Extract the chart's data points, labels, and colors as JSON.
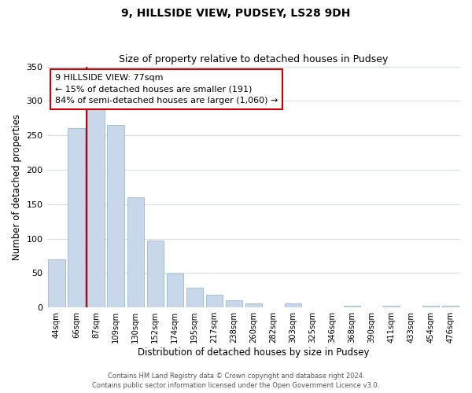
{
  "title": "9, HILLSIDE VIEW, PUDSEY, LS28 9DH",
  "subtitle": "Size of property relative to detached houses in Pudsey",
  "xlabel": "Distribution of detached houses by size in Pudsey",
  "ylabel": "Number of detached properties",
  "bar_labels": [
    "44sqm",
    "66sqm",
    "87sqm",
    "109sqm",
    "130sqm",
    "152sqm",
    "174sqm",
    "195sqm",
    "217sqm",
    "238sqm",
    "260sqm",
    "282sqm",
    "303sqm",
    "325sqm",
    "346sqm",
    "368sqm",
    "390sqm",
    "411sqm",
    "433sqm",
    "454sqm",
    "476sqm"
  ],
  "bar_values": [
    70,
    260,
    292,
    265,
    160,
    97,
    49,
    29,
    19,
    10,
    6,
    0,
    6,
    0,
    0,
    3,
    0,
    2,
    0,
    2,
    2
  ],
  "bar_color": "#c8d8ea",
  "bar_edge_color": "#9ab8cc",
  "vline_color": "#cc0000",
  "vline_pos": 1.5,
  "ylim": [
    0,
    350
  ],
  "yticks": [
    0,
    50,
    100,
    150,
    200,
    250,
    300,
    350
  ],
  "annotation_text": "9 HILLSIDE VIEW: 77sqm\n← 15% of detached houses are smaller (191)\n84% of semi-detached houses are larger (1,060) →",
  "annotation_box_color": "#ffffff",
  "annotation_box_edge": "#cc0000",
  "footer_line1": "Contains HM Land Registry data © Crown copyright and database right 2024.",
  "footer_line2": "Contains public sector information licensed under the Open Government Licence v3.0.",
  "background_color": "#ffffff",
  "grid_color": "#d4dce8"
}
